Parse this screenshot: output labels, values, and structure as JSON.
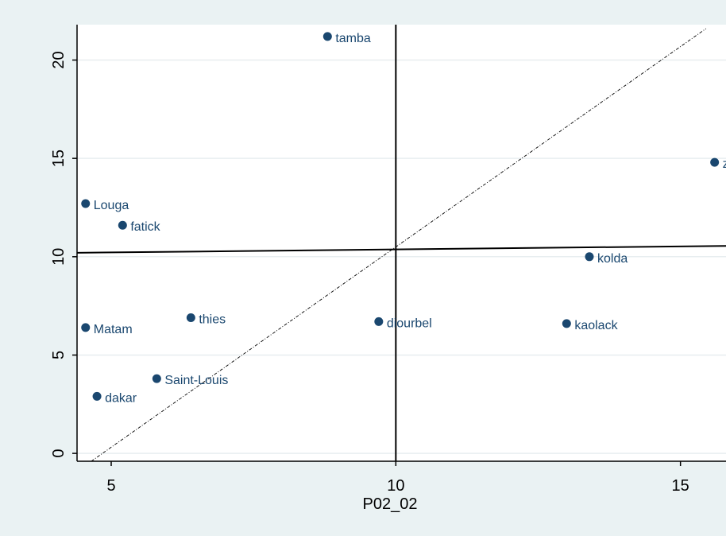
{
  "chart_data": {
    "type": "scatter",
    "xlabel": "P02_02",
    "ylabel": "",
    "xlim": [
      4.4,
      15.8
    ],
    "ylim": [
      -0.4,
      21.8
    ],
    "xticks": [
      5,
      10,
      15
    ],
    "yticks": [
      0,
      5,
      10,
      15,
      20
    ],
    "grid": "horizontal",
    "point_color": "#1a476f",
    "points": [
      {
        "label": "tamba",
        "x": 8.8,
        "y": 21.2
      },
      {
        "label": "zig",
        "x": 15.6,
        "y": 14.8
      },
      {
        "label": "Louga",
        "x": 4.55,
        "y": 12.7
      },
      {
        "label": "fatick",
        "x": 5.2,
        "y": 11.6
      },
      {
        "label": "kolda",
        "x": 13.4,
        "y": 10.0
      },
      {
        "label": "thies",
        "x": 6.4,
        "y": 6.9
      },
      {
        "label": "diourbel",
        "x": 9.7,
        "y": 6.7
      },
      {
        "label": "kaolack",
        "x": 13.0,
        "y": 6.6
      },
      {
        "label": "Matam",
        "x": 4.55,
        "y": 6.4
      },
      {
        "label": "Saint-Louis",
        "x": 5.8,
        "y": 3.8
      },
      {
        "label": "dakar",
        "x": 4.75,
        "y": 2.9
      }
    ],
    "reference_lines": {
      "vertical_x": 10,
      "horizontal_segment": [
        [
          4.4,
          10.2
        ],
        [
          15.8,
          10.55
        ]
      ],
      "diagonal_segment": [
        [
          4.65,
          -0.4
        ],
        [
          15.45,
          21.6
        ]
      ]
    }
  }
}
